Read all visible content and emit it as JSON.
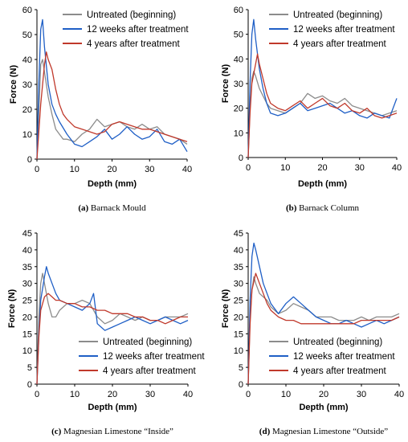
{
  "colors": {
    "untreated": "#8c8c8c",
    "weeks12": "#1f5fc6",
    "years4": "#c0392b"
  },
  "chart_data": [
    {
      "type": "line",
      "caption_letter": "(a)",
      "caption": "Barnack Mould",
      "xlabel": "Depth (mm)",
      "ylabel": "Force (N)",
      "xlim": [
        0,
        40
      ],
      "ylim": [
        0,
        60
      ],
      "xticks": [
        0,
        10,
        20,
        30,
        40
      ],
      "yticks": [
        0,
        10,
        20,
        30,
        40,
        50,
        60
      ],
      "legend_position": "top-right",
      "series": [
        {
          "name": "Untreated (beginning)",
          "color_key": "untreated",
          "x": [
            0,
            1,
            1.5,
            2,
            3,
            4,
            5,
            6,
            7,
            8,
            10,
            12,
            14,
            16,
            18,
            20,
            22,
            24,
            26,
            28,
            30,
            32,
            34,
            36,
            38,
            40
          ],
          "y": [
            0,
            38,
            40,
            35,
            25,
            18,
            12,
            10,
            8,
            8,
            7,
            10,
            12,
            16,
            13,
            14,
            15,
            13,
            12,
            14,
            12,
            13,
            10,
            9,
            8,
            6
          ]
        },
        {
          "name": "12 weeks after treatment",
          "color_key": "weeks12",
          "x": [
            0,
            0.5,
            1,
            1.5,
            2,
            3,
            4,
            5,
            6,
            8,
            10,
            12,
            14,
            16,
            18,
            20,
            22,
            24,
            26,
            28,
            30,
            32,
            34,
            36,
            38,
            40
          ],
          "y": [
            0,
            30,
            52,
            56,
            45,
            30,
            22,
            18,
            15,
            10,
            6,
            5,
            7,
            9,
            12,
            8,
            10,
            13,
            10,
            8,
            9,
            12,
            7,
            6,
            8,
            3
          ]
        },
        {
          "name": "4 years after treatment",
          "color_key": "years4",
          "x": [
            0,
            1,
            2,
            2.5,
            3,
            4,
            5,
            6,
            7,
            8,
            10,
            12,
            14,
            16,
            18,
            20,
            22,
            24,
            26,
            28,
            30,
            32,
            34,
            36,
            38,
            40
          ],
          "y": [
            0,
            22,
            38,
            43,
            40,
            36,
            28,
            22,
            18,
            16,
            13,
            12,
            11,
            10,
            11,
            14,
            15,
            14,
            13,
            12,
            12,
            11,
            10,
            9,
            8,
            7
          ]
        }
      ]
    },
    {
      "type": "line",
      "caption_letter": "(b)",
      "caption": "Barnack Column",
      "xlabel": "Depth (mm)",
      "ylabel": "Force (N)",
      "xlim": [
        0,
        40
      ],
      "ylim": [
        0,
        60
      ],
      "xticks": [
        0,
        10,
        20,
        30,
        40
      ],
      "yticks": [
        0,
        10,
        20,
        30,
        40,
        50,
        60
      ],
      "legend_position": "top-right",
      "series": [
        {
          "name": "Untreated (beginning)",
          "color_key": "untreated",
          "x": [
            0,
            0.5,
            1,
            1.5,
            2,
            3,
            4,
            5,
            6,
            8,
            10,
            12,
            14,
            16,
            18,
            20,
            22,
            24,
            26,
            28,
            30,
            32,
            34,
            36,
            38,
            40
          ],
          "y": [
            0,
            20,
            32,
            35,
            33,
            28,
            25,
            22,
            20,
            19,
            18,
            20,
            22,
            26,
            24,
            25,
            23,
            22,
            24,
            21,
            20,
            19,
            18,
            17,
            18,
            19
          ]
        },
        {
          "name": "12 weeks after treatment",
          "color_key": "weeks12",
          "x": [
            0,
            0.5,
            1,
            1.5,
            2,
            3,
            4,
            5,
            6,
            8,
            10,
            12,
            14,
            16,
            18,
            20,
            22,
            24,
            26,
            28,
            30,
            32,
            34,
            36,
            38,
            40
          ],
          "y": [
            0,
            30,
            50,
            56,
            48,
            36,
            28,
            22,
            18,
            17,
            18,
            20,
            22,
            19,
            20,
            21,
            22,
            20,
            18,
            19,
            17,
            16,
            18,
            17,
            16,
            24
          ]
        },
        {
          "name": "4 years after treatment",
          "color_key": "years4",
          "x": [
            0,
            0.5,
            1,
            2,
            2.5,
            3,
            4,
            5,
            6,
            8,
            10,
            12,
            14,
            16,
            18,
            20,
            22,
            24,
            26,
            28,
            30,
            32,
            34,
            36,
            38,
            40
          ],
          "y": [
            0,
            18,
            30,
            38,
            42,
            38,
            32,
            26,
            22,
            20,
            19,
            21,
            23,
            20,
            22,
            24,
            21,
            20,
            22,
            19,
            18,
            20,
            17,
            16,
            17,
            18
          ]
        }
      ]
    },
    {
      "type": "line",
      "caption_letter": "(c)",
      "caption": "Magnesian Limestone “Inside”",
      "xlabel": "Depth (mm)",
      "ylabel": "Force (N)",
      "xlim": [
        0,
        40
      ],
      "ylim": [
        0,
        45
      ],
      "xticks": [
        0,
        10,
        20,
        30,
        40
      ],
      "yticks": [
        0,
        5,
        10,
        15,
        20,
        25,
        30,
        35,
        40,
        45
      ],
      "legend_position": "bottom-right",
      "series": [
        {
          "name": "Untreated (beginning)",
          "color_key": "untreated",
          "x": [
            0,
            0.5,
            1,
            1.5,
            2,
            3,
            4,
            5,
            6,
            8,
            10,
            12,
            14,
            16,
            18,
            20,
            22,
            24,
            26,
            28,
            30,
            32,
            34,
            36,
            38,
            40
          ],
          "y": [
            0,
            20,
            30,
            33,
            30,
            24,
            20,
            20,
            22,
            24,
            24,
            25,
            24,
            20,
            18,
            19,
            21,
            20,
            19,
            20,
            19,
            19,
            20,
            20,
            20,
            21
          ]
        },
        {
          "name": "12 weeks after treatment",
          "color_key": "weeks12",
          "x": [
            0,
            0.5,
            1,
            2,
            2.5,
            3,
            4,
            5,
            6,
            8,
            10,
            12,
            14,
            15,
            16,
            18,
            20,
            22,
            24,
            26,
            28,
            30,
            32,
            34,
            36,
            38,
            40
          ],
          "y": [
            0,
            15,
            25,
            32,
            35,
            33,
            30,
            27,
            25,
            24,
            23,
            22,
            24,
            27,
            18,
            16,
            17,
            18,
            19,
            20,
            19,
            18,
            19,
            20,
            19,
            18,
            19
          ]
        },
        {
          "name": "4 years after treatment",
          "color_key": "years4",
          "x": [
            0,
            0.5,
            1,
            2,
            3,
            4,
            5,
            6,
            8,
            10,
            12,
            14,
            16,
            18,
            20,
            22,
            24,
            26,
            28,
            30,
            32,
            34,
            36,
            38,
            40
          ],
          "y": [
            0,
            14,
            22,
            26,
            27,
            26,
            25,
            25,
            24,
            24,
            23,
            23,
            22,
            22,
            21,
            21,
            21,
            20,
            20,
            19,
            19,
            18,
            19,
            20,
            20
          ]
        }
      ]
    },
    {
      "type": "line",
      "caption_letter": "(d)",
      "caption": "Magnesian Limestone “Outside”",
      "xlabel": "Depth (mm)",
      "ylabel": "Force (N)",
      "xlim": [
        0,
        40
      ],
      "ylim": [
        0,
        45
      ],
      "xticks": [
        0,
        10,
        20,
        30,
        40
      ],
      "yticks": [
        0,
        5,
        10,
        15,
        20,
        25,
        30,
        35,
        40,
        45
      ],
      "legend_position": "bottom-right",
      "series": [
        {
          "name": "Untreated (beginning)",
          "color_key": "untreated",
          "x": [
            0,
            0.5,
            1,
            1.5,
            2,
            3,
            4,
            5,
            6,
            8,
            10,
            12,
            14,
            16,
            18,
            20,
            22,
            24,
            26,
            28,
            30,
            32,
            34,
            36,
            38,
            40
          ],
          "y": [
            0,
            20,
            28,
            32,
            30,
            27,
            26,
            25,
            23,
            21,
            22,
            24,
            23,
            22,
            20,
            20,
            20,
            19,
            19,
            19,
            20,
            19,
            20,
            20,
            20,
            21
          ]
        },
        {
          "name": "12 weeks after treatment",
          "color_key": "weeks12",
          "x": [
            0,
            0.5,
            1,
            1.5,
            2,
            3,
            4,
            5,
            6,
            8,
            10,
            12,
            14,
            16,
            18,
            20,
            22,
            24,
            26,
            28,
            30,
            32,
            34,
            36,
            38,
            40
          ],
          "y": [
            0,
            25,
            38,
            42,
            40,
            35,
            30,
            27,
            24,
            21,
            24,
            26,
            24,
            22,
            20,
            19,
            18,
            18,
            19,
            18,
            17,
            18,
            19,
            18,
            19,
            20
          ]
        },
        {
          "name": "4 years after treatment",
          "color_key": "years4",
          "x": [
            0,
            0.5,
            1,
            2,
            3,
            4,
            5,
            6,
            8,
            10,
            12,
            14,
            16,
            18,
            20,
            22,
            24,
            26,
            28,
            30,
            32,
            34,
            36,
            38,
            40
          ],
          "y": [
            0,
            18,
            28,
            33,
            30,
            27,
            24,
            22,
            20,
            19,
            19,
            18,
            18,
            18,
            18,
            18,
            18,
            18,
            18,
            19,
            19,
            19,
            19,
            19,
            20
          ]
        }
      ]
    }
  ]
}
